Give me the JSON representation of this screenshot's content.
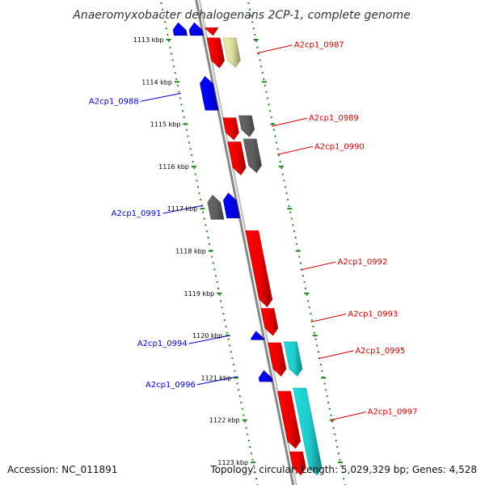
{
  "title": "Anaeromyxobacter dehalogenans 2CP-1, complete genome",
  "footer": {
    "accession": "Accession: NC_011891",
    "summary": "Topology: circular; Length: 5,029,329 bp; Genes: 4,528"
  },
  "colors": {
    "forward_gene": "#ff0000",
    "reverse_gene": "#0000ff",
    "other_feature": "#666666",
    "highlight_light": "#eeeeaa",
    "highlight_cyan": "#22dddd",
    "ruler_ticks": "#228822",
    "forward_label": "#cc0000",
    "reverse_label": "#0000cc",
    "backbone": "#888888"
  },
  "ruler": {
    "unit": "kbp",
    "ticks": [
      {
        "kbp": 1113,
        "label": "1113 kbp"
      },
      {
        "kbp": 1114,
        "label": "1114 kbp"
      },
      {
        "kbp": 1115,
        "label": "1115 kbp"
      },
      {
        "kbp": 1116,
        "label": "1116 kbp"
      },
      {
        "kbp": 1117,
        "label": "1117 kbp"
      },
      {
        "kbp": 1118,
        "label": "1118 kbp"
      },
      {
        "kbp": 1119,
        "label": "1119 kbp"
      },
      {
        "kbp": 1120,
        "label": "1120 kbp"
      },
      {
        "kbp": 1121,
        "label": "1121 kbp"
      },
      {
        "kbp": 1122,
        "label": "1122 kbp"
      },
      {
        "kbp": 1123,
        "label": "1123 kbp"
      }
    ]
  },
  "features": [
    {
      "strand": "reverse",
      "lane": "outer",
      "start": 1112.6,
      "end": 1112.9,
      "color": "reverse_gene"
    },
    {
      "strand": "reverse",
      "lane": "inner",
      "start": 1112.6,
      "end": 1112.9,
      "color": "reverse_gene"
    },
    {
      "strand": "forward",
      "lane": "inner",
      "start": 1112.72,
      "end": 1112.9,
      "color": "forward_gene"
    },
    {
      "strand": "forward",
      "lane": "inner",
      "start": 1112.96,
      "end": 1113.67,
      "color": "forward_gene"
    },
    {
      "strand": "forward",
      "lane": "outer",
      "start": 1112.96,
      "end": 1113.66,
      "color": "highlight_light"
    },
    {
      "strand": "reverse",
      "lane": "inner",
      "start": 1113.87,
      "end": 1114.67,
      "color": "reverse_gene"
    },
    {
      "strand": "forward",
      "lane": "inner",
      "start": 1114.85,
      "end": 1115.37,
      "color": "forward_gene"
    },
    {
      "strand": "forward",
      "lane": "outer",
      "start": 1114.8,
      "end": 1115.3,
      "color": "other_feature"
    },
    {
      "strand": "forward",
      "lane": "inner",
      "start": 1115.42,
      "end": 1116.2,
      "color": "forward_gene"
    },
    {
      "strand": "forward",
      "lane": "outer",
      "start": 1115.35,
      "end": 1116.15,
      "color": "other_feature"
    },
    {
      "strand": "reverse",
      "lane": "outer",
      "start": 1116.68,
      "end": 1117.25,
      "color": "other_feature"
    },
    {
      "strand": "reverse",
      "lane": "inner",
      "start": 1116.63,
      "end": 1117.22,
      "color": "reverse_gene"
    },
    {
      "strand": "forward",
      "lane": "inner",
      "start": 1117.52,
      "end": 1119.32,
      "color": "forward_gene"
    },
    {
      "strand": "forward",
      "lane": "inner",
      "start": 1119.36,
      "end": 1120.0,
      "color": "forward_gene"
    },
    {
      "strand": "reverse",
      "lane": "inner",
      "start": 1119.9,
      "end": 1120.1,
      "color": "reverse_gene"
    },
    {
      "strand": "forward",
      "lane": "inner",
      "start": 1120.17,
      "end": 1120.96,
      "color": "forward_gene"
    },
    {
      "strand": "forward",
      "lane": "outer",
      "start": 1120.15,
      "end": 1120.96,
      "color": "highlight_cyan"
    },
    {
      "strand": "reverse",
      "lane": "inner",
      "start": 1120.83,
      "end": 1121.09,
      "color": "reverse_gene"
    },
    {
      "strand": "forward",
      "lane": "inner",
      "start": 1121.32,
      "end": 1122.67,
      "color": "forward_gene"
    },
    {
      "strand": "forward",
      "lane": "outer",
      "start": 1121.24,
      "end": 1123.3,
      "color": "highlight_cyan"
    },
    {
      "strand": "forward",
      "lane": "inner",
      "start": 1122.75,
      "end": 1123.3,
      "color": "forward_gene"
    }
  ],
  "gene_labels": [
    {
      "name": "A2cp1_0987",
      "strand": "forward",
      "kbp": 1113.32
    },
    {
      "name": "A2cp1_0988",
      "strand": "reverse",
      "kbp": 1114.27
    },
    {
      "name": "A2cp1_0989",
      "strand": "forward",
      "kbp": 1115.05
    },
    {
      "name": "A2cp1_0990",
      "strand": "forward",
      "kbp": 1115.72
    },
    {
      "name": "A2cp1_0991",
      "strand": "reverse",
      "kbp": 1116.92
    },
    {
      "name": "A2cp1_0992",
      "strand": "forward",
      "kbp": 1118.45
    },
    {
      "name": "A2cp1_0993",
      "strand": "forward",
      "kbp": 1119.68
    },
    {
      "name": "A2cp1_0994",
      "strand": "reverse",
      "kbp": 1120.0
    },
    {
      "name": "A2cp1_0995",
      "strand": "forward",
      "kbp": 1120.55
    },
    {
      "name": "A2cp1_0996",
      "strand": "reverse",
      "kbp": 1120.97
    },
    {
      "name": "A2cp1_0997",
      "strand": "forward",
      "kbp": 1122.0
    }
  ]
}
